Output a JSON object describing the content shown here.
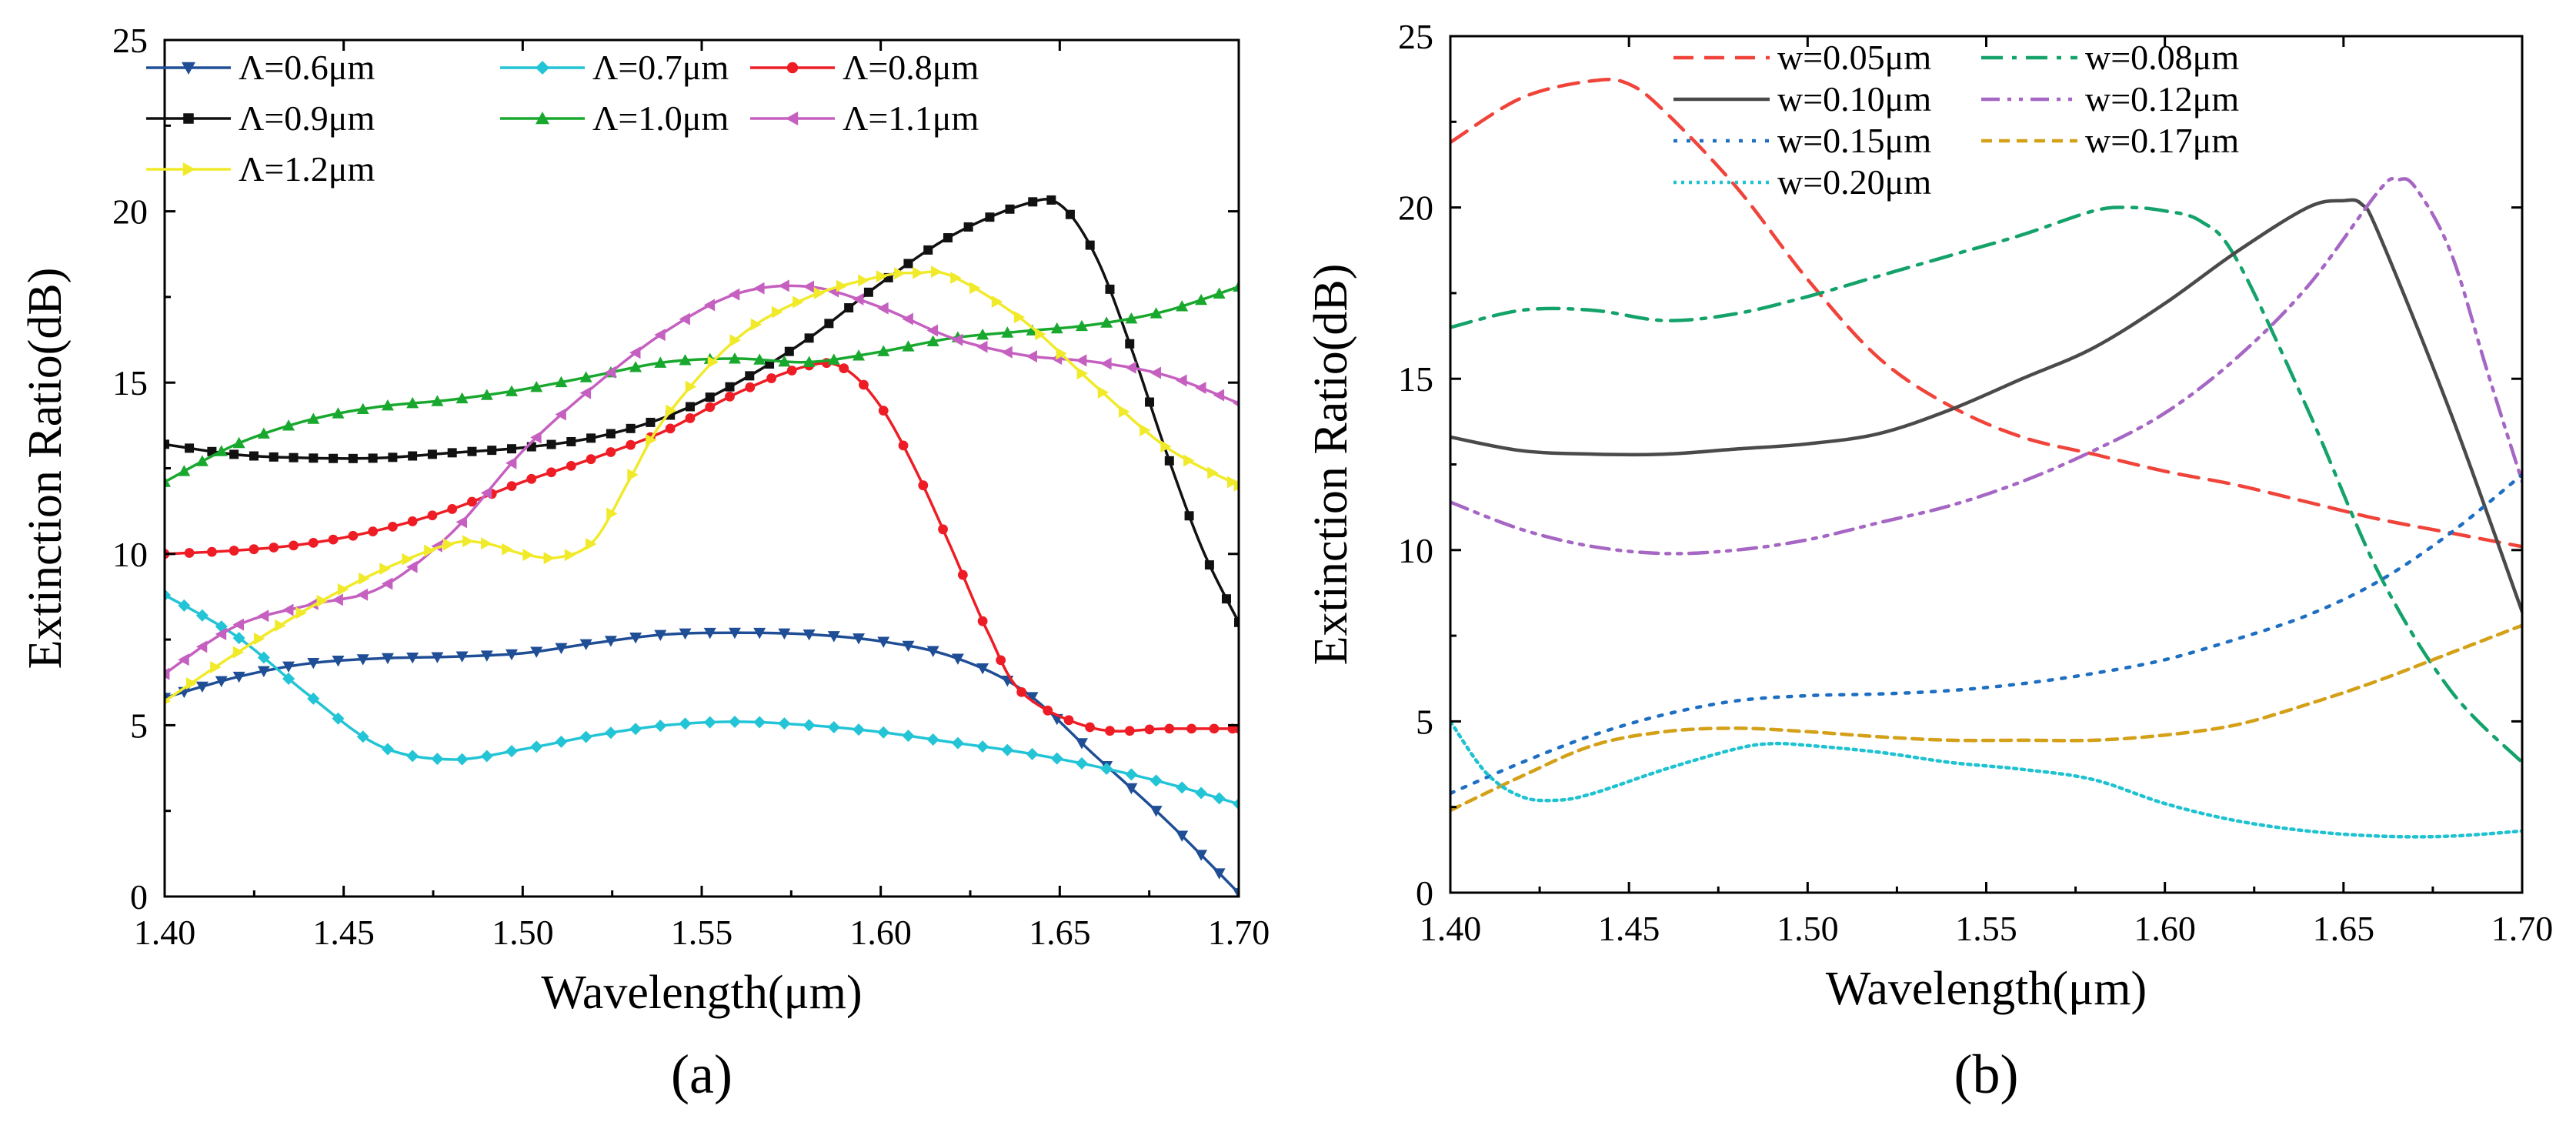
{
  "chart_data": [
    {
      "type": "line",
      "panel_label": "(a)",
      "xlabel": "Wavelength(μm)",
      "ylabel": "Extinction Ratio(dB)",
      "xlim": [
        1.4,
        1.7
      ],
      "ylim": [
        0,
        25
      ],
      "xticks": [
        "1.40",
        "1.45",
        "1.50",
        "1.55",
        "1.60",
        "1.65",
        "1.70"
      ],
      "yticks": [
        "0",
        "5",
        "10",
        "15",
        "20",
        "25"
      ],
      "grid": false,
      "legend_position": "top-left",
      "series": [
        {
          "name": "Λ=0.6μm",
          "color": "#1f4e96",
          "marker": "triangle-down",
          "x": [
            1.4,
            1.42,
            1.44,
            1.46,
            1.48,
            1.5,
            1.52,
            1.54,
            1.56,
            1.58,
            1.6,
            1.62,
            1.64,
            1.66,
            1.68,
            1.7
          ],
          "y": [
            5.8,
            6.4,
            6.8,
            6.95,
            7.0,
            7.1,
            7.4,
            7.65,
            7.7,
            7.65,
            7.45,
            7.0,
            6.0,
            4.1,
            2.2,
            0.1
          ]
        },
        {
          "name": "Λ=0.7μm",
          "color": "#22c4d6",
          "marker": "diamond",
          "x": [
            1.4,
            1.42,
            1.44,
            1.46,
            1.48,
            1.5,
            1.52,
            1.54,
            1.56,
            1.58,
            1.6,
            1.62,
            1.64,
            1.66,
            1.68,
            1.7
          ],
          "y": [
            8.8,
            7.6,
            5.9,
            4.4,
            4.0,
            4.3,
            4.7,
            5.0,
            5.1,
            5.0,
            4.8,
            4.5,
            4.2,
            3.8,
            3.3,
            2.7
          ]
        },
        {
          "name": "Λ=0.8μm",
          "color": "#ee1c24",
          "marker": "circle",
          "x": [
            1.4,
            1.42,
            1.44,
            1.46,
            1.48,
            1.5,
            1.52,
            1.54,
            1.56,
            1.58,
            1.59,
            1.6,
            1.61,
            1.62,
            1.63,
            1.64,
            1.66,
            1.68,
            1.7
          ],
          "y": [
            10.0,
            10.1,
            10.3,
            10.7,
            11.3,
            12.1,
            12.8,
            13.6,
            14.7,
            15.5,
            15.4,
            14.3,
            12.4,
            10.1,
            7.7,
            5.9,
            4.9,
            4.9,
            4.9
          ]
        },
        {
          "name": "Λ=0.9μm",
          "color": "#111111",
          "marker": "square",
          "x": [
            1.4,
            1.42,
            1.44,
            1.46,
            1.48,
            1.5,
            1.52,
            1.54,
            1.56,
            1.58,
            1.6,
            1.62,
            1.64,
            1.65,
            1.66,
            1.67,
            1.68,
            1.69,
            1.7
          ],
          "y": [
            13.2,
            12.9,
            12.8,
            12.8,
            12.95,
            13.1,
            13.4,
            14.0,
            15.0,
            16.3,
            17.9,
            19.3,
            20.2,
            20.2,
            18.7,
            16.0,
            12.9,
            10.1,
            8.0
          ]
        },
        {
          "name": "Λ=1.0μm",
          "color": "#19a82e",
          "marker": "triangle-up",
          "x": [
            1.4,
            1.42,
            1.44,
            1.46,
            1.48,
            1.5,
            1.52,
            1.54,
            1.56,
            1.58,
            1.6,
            1.62,
            1.64,
            1.66,
            1.68,
            1.7
          ],
          "y": [
            12.1,
            13.2,
            13.9,
            14.3,
            14.5,
            14.8,
            15.2,
            15.6,
            15.7,
            15.6,
            15.9,
            16.3,
            16.5,
            16.7,
            17.1,
            17.8
          ]
        },
        {
          "name": "Λ=1.1μm",
          "color": "#c560c0",
          "marker": "triangle-left",
          "x": [
            1.4,
            1.42,
            1.44,
            1.46,
            1.48,
            1.5,
            1.52,
            1.54,
            1.56,
            1.58,
            1.6,
            1.62,
            1.64,
            1.66,
            1.68,
            1.7
          ],
          "y": [
            6.5,
            7.9,
            8.5,
            9.0,
            10.6,
            13.0,
            14.9,
            16.5,
            17.6,
            17.8,
            17.2,
            16.3,
            15.8,
            15.6,
            15.2,
            14.4
          ]
        },
        {
          "name": "Λ=1.2μm",
          "color": "#f1ea2a",
          "marker": "triangle-right",
          "x": [
            1.4,
            1.42,
            1.44,
            1.46,
            1.48,
            1.49,
            1.5,
            1.51,
            1.52,
            1.53,
            1.54,
            1.56,
            1.58,
            1.6,
            1.61,
            1.62,
            1.64,
            1.66,
            1.68,
            1.7
          ],
          "y": [
            5.7,
            7.1,
            8.4,
            9.5,
            10.3,
            10.3,
            10.0,
            9.9,
            10.4,
            12.2,
            14.0,
            16.3,
            17.5,
            18.1,
            18.2,
            18.1,
            16.8,
            14.9,
            13.1,
            12.0
          ]
        }
      ]
    },
    {
      "type": "line",
      "panel_label": "(b)",
      "xlabel": "Wavelength(μm)",
      "ylabel": "Extinction Ratio(dB)",
      "xlim": [
        1.4,
        1.7
      ],
      "ylim": [
        0,
        25
      ],
      "xticks": [
        "1.40",
        "1.45",
        "1.50",
        "1.55",
        "1.60",
        "1.65",
        "1.70"
      ],
      "yticks": [
        "0",
        "5",
        "10",
        "15",
        "20",
        "25"
      ],
      "grid": false,
      "legend_position": "top-right",
      "series": [
        {
          "name": "w=0.05μm",
          "color": "#f0433a",
          "dash": "dash",
          "x": [
            1.4,
            1.42,
            1.44,
            1.45,
            1.46,
            1.48,
            1.5,
            1.52,
            1.54,
            1.56,
            1.58,
            1.6,
            1.62,
            1.64,
            1.66,
            1.68,
            1.7
          ],
          "y": [
            21.9,
            23.2,
            23.7,
            23.6,
            22.8,
            20.6,
            17.9,
            15.6,
            14.2,
            13.3,
            12.8,
            12.3,
            11.9,
            11.4,
            10.9,
            10.5,
            10.1
          ]
        },
        {
          "name": "w=0.08μm",
          "color": "#13a26a",
          "dash": "dashdot",
          "x": [
            1.4,
            1.42,
            1.44,
            1.46,
            1.48,
            1.5,
            1.52,
            1.54,
            1.56,
            1.58,
            1.59,
            1.6,
            1.61,
            1.62,
            1.64,
            1.66,
            1.68,
            1.7
          ],
          "y": [
            16.5,
            17.0,
            17.0,
            16.7,
            16.9,
            17.4,
            18.0,
            18.6,
            19.2,
            19.9,
            20.0,
            19.9,
            19.6,
            18.5,
            14.1,
            9.3,
            5.9,
            3.8
          ]
        },
        {
          "name": "w=0.10μm",
          "color": "#4a4a4a",
          "dash": "solid",
          "x": [
            1.4,
            1.42,
            1.44,
            1.46,
            1.48,
            1.5,
            1.52,
            1.54,
            1.56,
            1.58,
            1.6,
            1.62,
            1.64,
            1.65,
            1.655,
            1.66,
            1.68,
            1.7
          ],
          "y": [
            13.3,
            12.9,
            12.8,
            12.8,
            12.95,
            13.1,
            13.4,
            14.1,
            15.0,
            15.9,
            17.2,
            18.7,
            20.0,
            20.2,
            20.1,
            19.2,
            14.0,
            8.2
          ]
        },
        {
          "name": "w=0.12μm",
          "color": "#a667c4",
          "dash": "dashdotdot",
          "x": [
            1.4,
            1.42,
            1.44,
            1.46,
            1.48,
            1.5,
            1.52,
            1.54,
            1.56,
            1.58,
            1.6,
            1.62,
            1.64,
            1.66,
            1.665,
            1.67,
            1.68,
            1.69,
            1.7
          ],
          "y": [
            11.4,
            10.6,
            10.1,
            9.9,
            10.0,
            10.3,
            10.8,
            11.3,
            12.0,
            12.9,
            14.0,
            15.6,
            17.7,
            20.5,
            20.8,
            20.6,
            18.7,
            15.3,
            12.0
          ]
        },
        {
          "name": "w=0.15μm",
          "color": "#1e6fc2",
          "dash": "dot",
          "x": [
            1.4,
            1.42,
            1.44,
            1.46,
            1.48,
            1.5,
            1.52,
            1.54,
            1.56,
            1.58,
            1.6,
            1.62,
            1.64,
            1.66,
            1.68,
            1.7
          ],
          "y": [
            2.9,
            3.8,
            4.6,
            5.2,
            5.6,
            5.75,
            5.8,
            5.9,
            6.1,
            6.4,
            6.8,
            7.4,
            8.1,
            9.1,
            10.5,
            12.2
          ]
        },
        {
          "name": "w=0.17μm",
          "color": "#d4a017",
          "dash": "shortdash",
          "x": [
            1.4,
            1.42,
            1.44,
            1.46,
            1.48,
            1.5,
            1.52,
            1.54,
            1.56,
            1.58,
            1.6,
            1.62,
            1.64,
            1.66,
            1.68,
            1.7
          ],
          "y": [
            2.4,
            3.4,
            4.3,
            4.7,
            4.8,
            4.7,
            4.55,
            4.45,
            4.45,
            4.45,
            4.6,
            4.9,
            5.5,
            6.2,
            7.0,
            7.8
          ]
        },
        {
          "name": "w=0.20μm",
          "color": "#1ec2d1",
          "dash": "densedot",
          "x": [
            1.4,
            1.41,
            1.42,
            1.43,
            1.44,
            1.46,
            1.48,
            1.49,
            1.5,
            1.52,
            1.54,
            1.56,
            1.58,
            1.6,
            1.62,
            1.64,
            1.66,
            1.68,
            1.7
          ],
          "y": [
            5.0,
            3.5,
            2.8,
            2.7,
            2.9,
            3.6,
            4.2,
            4.35,
            4.3,
            4.1,
            3.8,
            3.6,
            3.3,
            2.6,
            2.1,
            1.8,
            1.65,
            1.65,
            1.8
          ]
        }
      ]
    }
  ]
}
